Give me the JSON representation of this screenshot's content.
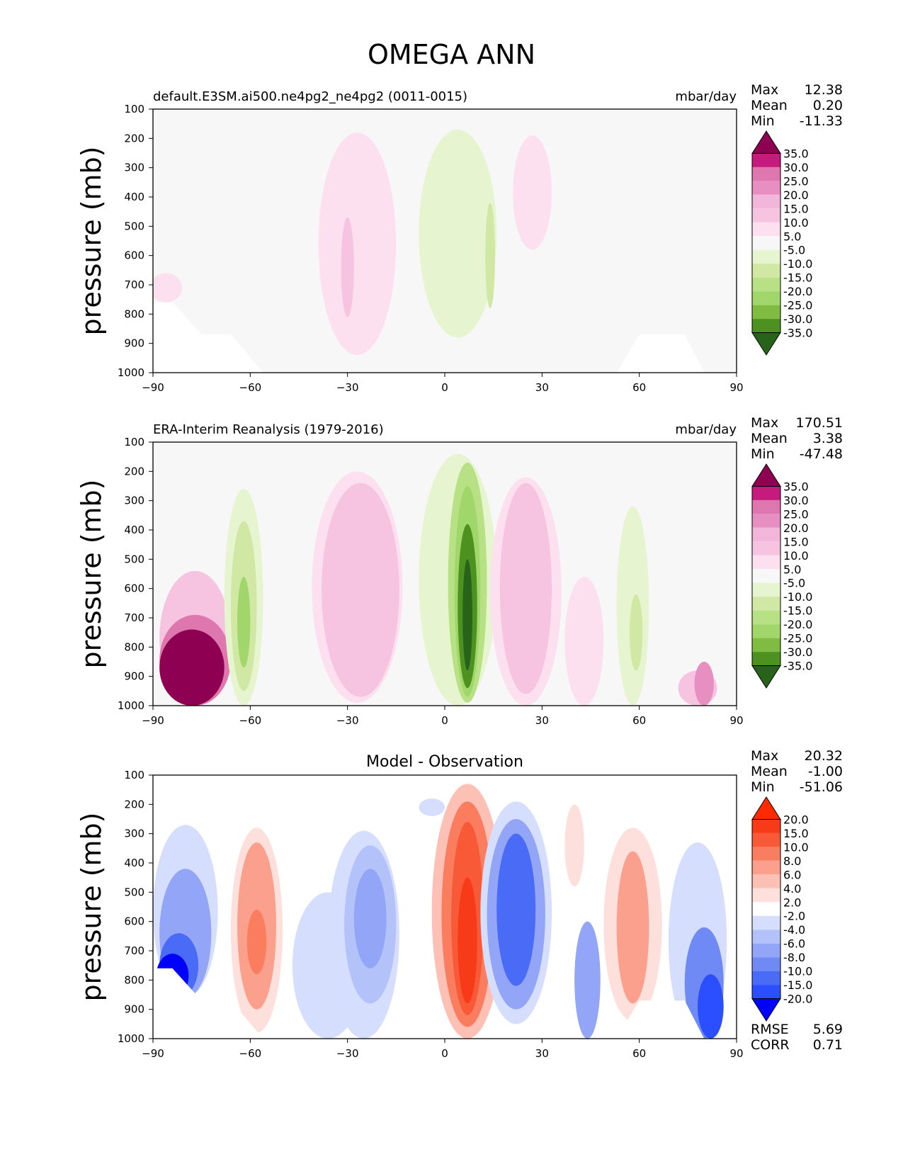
{
  "title": "OMEGA ANN",
  "colors": {
    "diverging_pg": [
      "#276419",
      "#4d9221",
      "#7fbc41",
      "#a1d76a",
      "#b8e186",
      "#d0e8a4",
      "#e6f5d0",
      "#f7f7f7",
      "#fde0ef",
      "#f6c4e0",
      "#f1b6da",
      "#e88fc2",
      "#de77ae",
      "#c51b7d",
      "#8e0152"
    ],
    "diverging_br": [
      "#0000ff",
      "#2b4fff",
      "#4a6bf5",
      "#6f89f5",
      "#93a5f7",
      "#b4c2fa",
      "#d6defd",
      "#ffffff",
      "#fde0dc",
      "#fcc1b4",
      "#fba08c",
      "#fa7d5f",
      "#f85a37",
      "#f73a18",
      "#ff2a00"
    ],
    "background": "#f7f7f7"
  },
  "chart_data": [
    {
      "type": "contour",
      "panel": "model",
      "title_left": "default.E3SM.ai500.ne4pg2_ne4pg2 (0011-0015)",
      "title_right": "mbar/day",
      "title_center": "",
      "ylabel": "pressure (mb)",
      "yticks": [
        "100",
        "200",
        "300",
        "400",
        "500",
        "600",
        "700",
        "800",
        "900",
        "1000"
      ],
      "xticks": [
        "−90",
        "−60",
        "−30",
        "0",
        "30",
        "60",
        "90"
      ],
      "xlim": [
        -90,
        90
      ],
      "ylim": [
        1000,
        100
      ],
      "stats": [
        [
          "Max",
          "12.38"
        ],
        [
          "Mean",
          "0.20"
        ],
        [
          "Min",
          "-11.33"
        ]
      ],
      "colorbar_labels": [
        "35.0",
        "30.0",
        "25.0",
        "20.0",
        "15.0",
        "10.0",
        "5.0",
        "-5.0",
        "-10.0",
        "-15.0",
        "-20.0",
        "-25.0",
        "-30.0",
        "-35.0"
      ],
      "colorbar_scheme": "diverging_pg"
    },
    {
      "type": "contour",
      "panel": "observation",
      "title_left": "ERA-Interim Reanalysis (1979-2016)",
      "title_right": "mbar/day",
      "title_center": "",
      "ylabel": "pressure (mb)",
      "yticks": [
        "100",
        "200",
        "300",
        "400",
        "500",
        "600",
        "700",
        "800",
        "900",
        "1000"
      ],
      "xticks": [
        "−90",
        "−60",
        "−30",
        "0",
        "30",
        "60",
        "90"
      ],
      "xlim": [
        -90,
        90
      ],
      "ylim": [
        1000,
        100
      ],
      "stats": [
        [
          "Max",
          "170.51"
        ],
        [
          "Mean",
          "3.38"
        ],
        [
          "Min",
          "-47.48"
        ]
      ],
      "colorbar_labels": [
        "35.0",
        "30.0",
        "25.0",
        "20.0",
        "15.0",
        "10.0",
        "5.0",
        "-5.0",
        "-10.0",
        "-15.0",
        "-20.0",
        "-25.0",
        "-30.0",
        "-35.0"
      ],
      "colorbar_scheme": "diverging_pg"
    },
    {
      "type": "contour",
      "panel": "difference",
      "title_left": "",
      "title_right": "",
      "title_center": "Model - Observation",
      "ylabel": "pressure (mb)",
      "yticks": [
        "100",
        "200",
        "300",
        "400",
        "500",
        "600",
        "700",
        "800",
        "900",
        "1000"
      ],
      "xticks": [
        "−90",
        "−60",
        "−30",
        "0",
        "30",
        "60",
        "90"
      ],
      "xlim": [
        -90,
        90
      ],
      "ylim": [
        1000,
        100
      ],
      "stats": [
        [
          "Max",
          "20.32"
        ],
        [
          "Mean",
          "-1.00"
        ],
        [
          "Min",
          "-51.06"
        ]
      ],
      "extra_stats": [
        [
          "RMSE",
          "5.69"
        ],
        [
          "CORR",
          "0.71"
        ]
      ],
      "colorbar_labels": [
        "20.0",
        "15.0",
        "10.0",
        "8.0",
        "6.0",
        "4.0",
        "2.0",
        "-2.0",
        "-4.0",
        "-6.0",
        "-8.0",
        "-10.0",
        "-15.0",
        "-20.0"
      ],
      "colorbar_scheme": "diverging_br"
    }
  ]
}
